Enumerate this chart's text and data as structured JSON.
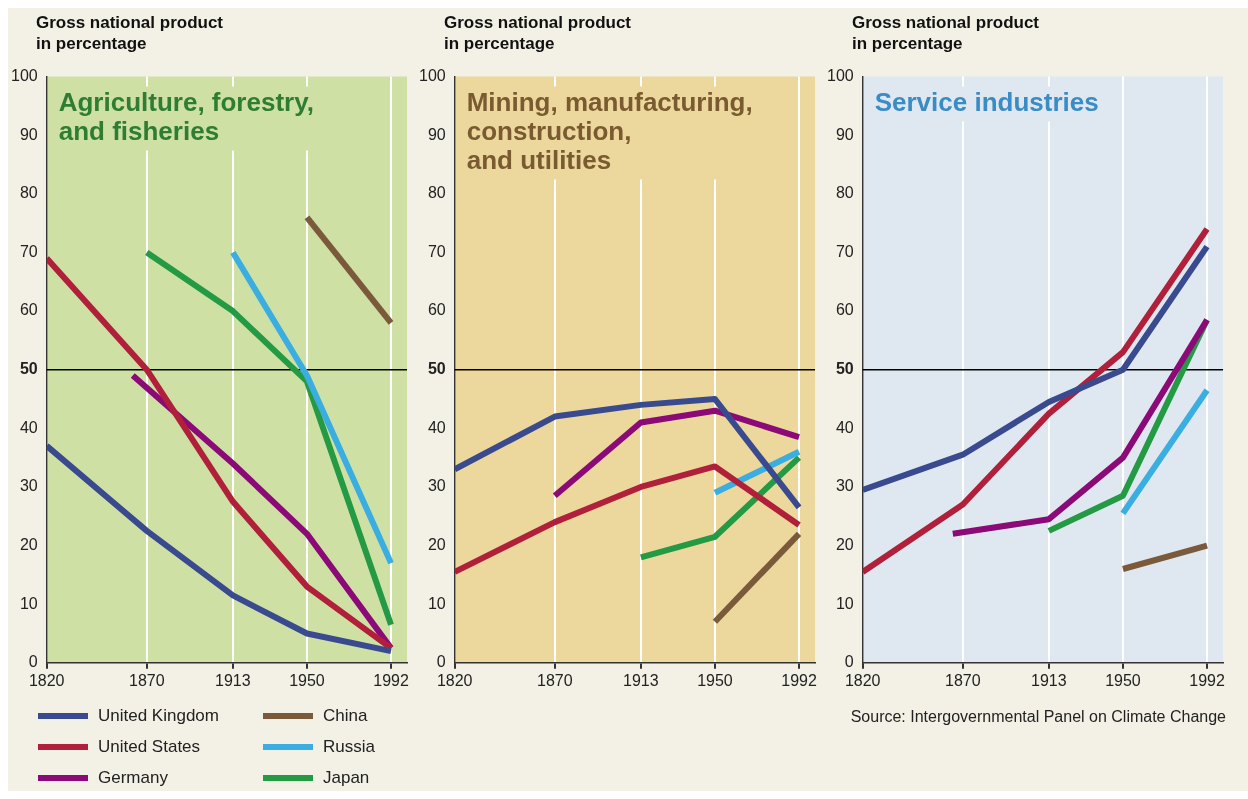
{
  "chart_data": [
    {
      "type": "line",
      "title": "Agriculture, forestry,\nand fisheries",
      "ylabel": "Gross national product\nin percentage",
      "xlim": [
        1820,
        2000
      ],
      "xticks": [
        1820,
        1870,
        1913,
        1950,
        1992
      ],
      "ylim": [
        0,
        100
      ],
      "yticks": [
        0,
        10,
        20,
        30,
        40,
        50,
        60,
        70,
        80,
        90,
        100
      ],
      "grid": "x",
      "legend": "bottom",
      "marker": "none",
      "line_style": "solid",
      "ref_lines": [
        {
          "axis": "y",
          "value": 50,
          "color": "#000000"
        }
      ],
      "series": [
        {
          "name": "United Kingdom",
          "color": "#3a4a8f",
          "x": [
            1820,
            1870,
            1913,
            1950,
            1992
          ],
          "values": [
            37,
            22.5,
            11.5,
            5,
            2
          ]
        },
        {
          "name": "United States",
          "color": "#b0203a",
          "x": [
            1820,
            1870,
            1913,
            1950,
            1992
          ],
          "values": [
            69,
            50,
            27.5,
            13,
            2.5
          ]
        },
        {
          "name": "Germany",
          "color": "#8b0a78",
          "x": [
            1863,
            1913,
            1950,
            1992
          ],
          "values": [
            49,
            34,
            22,
            2.5
          ]
        },
        {
          "name": "China",
          "color": "#7a5a3a",
          "x": [
            1950,
            1992
          ],
          "values": [
            76,
            58
          ]
        },
        {
          "name": "Russia",
          "color": "#3aaee0",
          "x": [
            1913,
            1950,
            1992
          ],
          "values": [
            70,
            49,
            17
          ]
        },
        {
          "name": "Japan",
          "color": "#259a45",
          "x": [
            1870,
            1913,
            1950,
            1992
          ],
          "values": [
            70,
            60,
            48,
            6.5
          ]
        }
      ]
    },
    {
      "type": "line",
      "title": "Mining, manufacturing,\nconstruction,\nand utilities",
      "ylabel": "Gross national product\nin percentage",
      "xlim": [
        1820,
        2000
      ],
      "xticks": [
        1820,
        1870,
        1913,
        1950,
        1992
      ],
      "ylim": [
        0,
        100
      ],
      "yticks": [
        0,
        10,
        20,
        30,
        40,
        50,
        60,
        70,
        80,
        90,
        100
      ],
      "grid": "x",
      "marker": "none",
      "line_style": "solid",
      "ref_lines": [
        {
          "axis": "y",
          "value": 50,
          "color": "#000000"
        }
      ],
      "series": [
        {
          "color": "#3a4a8f",
          "x": [
            1820,
            1870,
            1913,
            1950,
            1992
          ],
          "values": [
            33,
            42,
            44,
            45,
            26.5
          ]
        },
        {
          "color": "#b0203a",
          "x": [
            1820,
            1870,
            1913,
            1950,
            1992
          ],
          "values": [
            15.5,
            24,
            30,
            33.5,
            23.5
          ]
        },
        {
          "color": "#8b0a78",
          "x": [
            1870,
            1913,
            1950,
            1992
          ],
          "values": [
            28.5,
            41,
            43,
            38.5
          ]
        },
        {
          "color": "#7a5a3a",
          "x": [
            1950,
            1992
          ],
          "values": [
            7,
            22
          ]
        },
        {
          "color": "#3aaee0",
          "x": [
            1950,
            1992
          ],
          "values": [
            29,
            36
          ]
        },
        {
          "color": "#259a45",
          "x": [
            1913,
            1950,
            1992
          ],
          "values": [
            18,
            21.5,
            35
          ]
        }
      ]
    },
    {
      "type": "line",
      "title": "Service industries",
      "ylabel": "Gross national product\nin percentage",
      "xlim": [
        1820,
        2000
      ],
      "xticks": [
        1820,
        1870,
        1913,
        1950,
        1992
      ],
      "ylim": [
        0,
        100
      ],
      "yticks": [
        0,
        10,
        20,
        30,
        40,
        50,
        60,
        70,
        80,
        90,
        100
      ],
      "grid": "x",
      "marker": "none",
      "line_style": "solid",
      "ref_lines": [
        {
          "axis": "y",
          "value": 50,
          "color": "#000000"
        }
      ],
      "annotations": [
        "Source: Intergovernmental Panel on Climate Change"
      ],
      "series": [
        {
          "color": "#3a4a8f",
          "x": [
            1820,
            1870,
            1913,
            1950,
            1992
          ],
          "values": [
            29.5,
            35.5,
            44.5,
            50,
            71
          ]
        },
        {
          "color": "#b0203a",
          "x": [
            1820,
            1870,
            1913,
            1950,
            1992
          ],
          "values": [
            15.5,
            27,
            42.5,
            53,
            74
          ]
        },
        {
          "color": "#8b0a78",
          "x": [
            1865,
            1913,
            1950,
            1992
          ],
          "values": [
            22,
            24.5,
            35,
            58.5
          ]
        },
        {
          "color": "#7a5a3a",
          "x": [
            1950,
            1992
          ],
          "values": [
            16,
            20
          ]
        },
        {
          "color": "#3aaee0",
          "x": [
            1950,
            1992
          ],
          "values": [
            25.5,
            46.5
          ]
        },
        {
          "color": "#259a45",
          "x": [
            1913,
            1950,
            1992
          ],
          "values": [
            22.5,
            28.5,
            58.5
          ]
        }
      ]
    }
  ]
}
